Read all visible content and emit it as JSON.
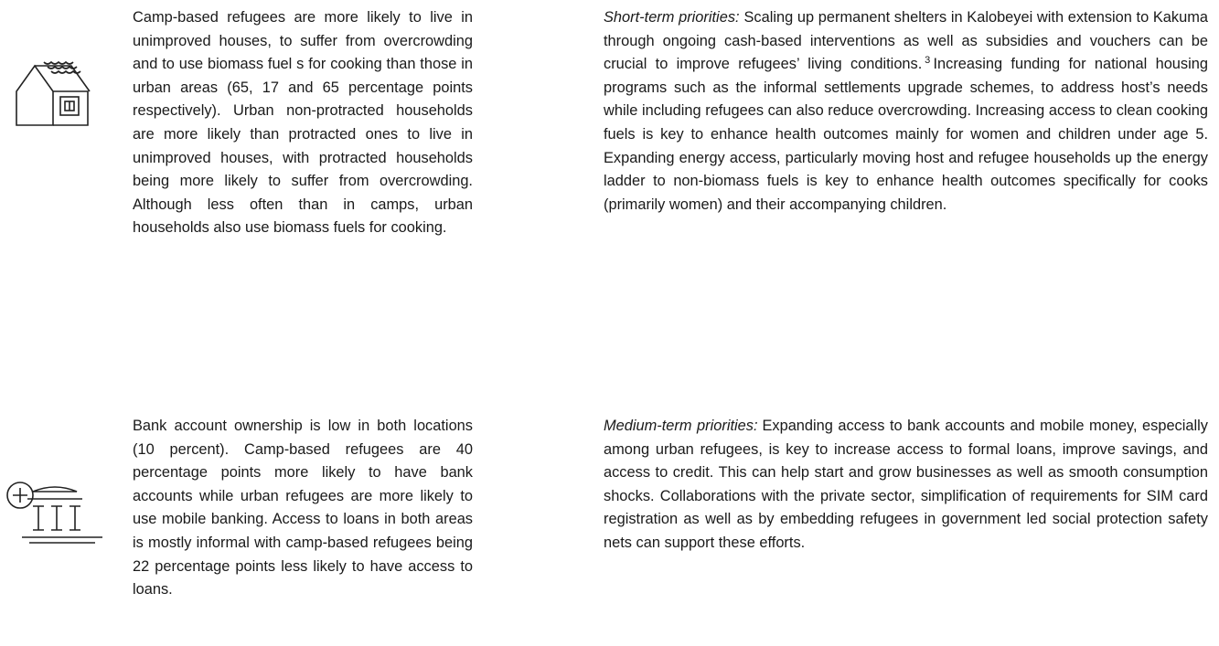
{
  "rows": [
    {
      "left": "Camp-based refugees are more likely to live in unimproved houses, to suffer from overcrowding and to use biomass fuel s for cooking than those in urban areas (65, 17 and 65 percentage points respectively). Urban non-protracted households are more likely than protracted ones to live in unimproved houses, with protracted households being more likely to suffer from overcrowding. Although less often than in camps, urban households also use biomass fuels for cooking.",
      "right": {
        "label": "Short-term priorities:",
        "text_before": "Scaling up permanent shelters in Kalobeyei with extension to Kakuma through ongoing cash-based interventions as well as subsidies and vouchers can be crucial to improve refugees’ living conditions.",
        "footnote": "3",
        "text_after": "Increasing funding for national housing programs such as the informal settlements upgrade schemes, to address host’s needs while including refugees can also reduce overcrowding. Increasing access to clean cooking fuels is key to enhance health outcomes mainly for women and children under age 5. Expanding energy access, particularly moving host and refugee households up the energy ladder to non-biomass fuels is key to enhance health outcomes specifically for cooks (primarily women) and their accompanying children."
      }
    },
    {
      "left": "Bank account ownership is low in both locations (10 percent). Camp-based refugees are 40 percentage points more likely to have bank accounts while urban refugees are more likely to use mobile banking. Access to loans in both areas is mostly informal with camp-based refugees being 22 percentage points less likely to have access to loans.",
      "right": {
        "label": "Medium-term priorities:",
        "text_before": "Expanding access to bank accounts and mobile money, especially among urban refugees, is key to increase access to formal loans, improve savings, and access to credit. This can help start and grow businesses as well as smooth consumption shocks. Collaborations with the private sector, simplification of requirements for SIM card registration as well as by embedding refugees in government led social protection safety nets can support these efforts."
      }
    }
  ]
}
